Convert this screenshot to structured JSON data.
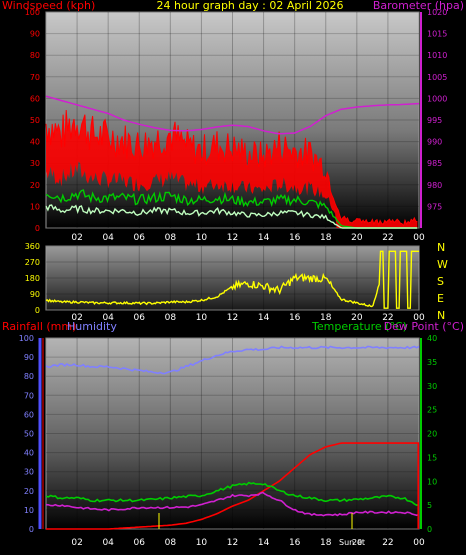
{
  "header": {
    "left": "Windspeed (kph)",
    "center": "24 hour graph day : 02 April 2026",
    "right": "Barometer (hpa)"
  },
  "middle": {
    "compass": [
      "N",
      "W",
      "S",
      "E",
      "N"
    ]
  },
  "bottom_header": {
    "rainfall": "Rainfall (mm)",
    "humidity": "Humidity",
    "temperature": "Temperature (°C)",
    "dewpoint": "Dew Point (°C)"
  },
  "markers": {
    "sunset": "Sunset",
    "sunset_short": "Sun",
    "sunset_tick": "20"
  },
  "colors": {
    "wind_avg": "#ff0000",
    "wind_gust": "#ff0000",
    "barometer": "#d020d0",
    "wind_dir": "#ffff00",
    "rain": "#ff0000",
    "humidity": "#8080ff",
    "temperature": "#00cc00",
    "dewpoint": "#d020d0",
    "green": "#00cc00",
    "lightgreen": "#c0ffc0"
  },
  "chart_data": [
    {
      "type": "line",
      "title": "24 hour graph day : 02 April 2026",
      "ylabel": "Windspeed (kph)",
      "y2label": "Barometer (hpa)",
      "ylim": [
        0,
        100
      ],
      "y2lim": [
        970,
        1020
      ],
      "yticks": [
        0,
        10,
        20,
        30,
        40,
        50,
        60,
        70,
        80,
        90,
        100
      ],
      "y2ticks": [
        975,
        980,
        985,
        990,
        995,
        1000,
        1005,
        1010,
        1015,
        1020
      ],
      "xticks": [
        "02",
        "04",
        "06",
        "08",
        "10",
        "12",
        "14",
        "16",
        "18",
        "20",
        "22",
        "00"
      ],
      "x_hours": [
        0,
        1,
        2,
        3,
        4,
        5,
        6,
        7,
        8,
        9,
        10,
        11,
        12,
        13,
        14,
        15,
        16,
        17,
        18,
        19,
        20,
        21,
        22,
        23,
        24
      ],
      "series": [
        {
          "name": "Windspeed (kph)",
          "axis": "left",
          "style": "gust_band",
          "values": [
            38,
            34,
            40,
            34,
            33,
            32,
            30,
            32,
            34,
            30,
            28,
            30,
            29,
            27,
            26,
            30,
            28,
            27,
            22,
            3,
            2,
            1,
            2,
            1,
            2
          ]
        },
        {
          "name": "",
          "axis": "left",
          "style": "green",
          "values": [
            17,
            14,
            16,
            14,
            14,
            14,
            13,
            14,
            15,
            13,
            13,
            14,
            13,
            12,
            12,
            13,
            13,
            12,
            10,
            1,
            0,
            0,
            0,
            0,
            0
          ]
        },
        {
          "name": "",
          "axis": "left",
          "style": "lightgreen",
          "values": [
            10,
            8,
            9,
            8,
            8,
            8,
            7,
            8,
            8,
            7,
            7,
            8,
            7,
            6,
            6,
            7,
            7,
            6,
            5,
            0,
            0,
            0,
            0,
            0,
            0
          ]
        },
        {
          "name": "Barometer (hpa)",
          "axis": "right",
          "style": "line",
          "values": [
            1000.5,
            999.5,
            998.5,
            997.5,
            996.5,
            995,
            994,
            993.2,
            992.6,
            992.5,
            992.8,
            993.4,
            993.8,
            993.5,
            992.5,
            991.8,
            992,
            993.5,
            996,
            997.5,
            998,
            998.3,
            998.5,
            998.6,
            998.8
          ]
        }
      ]
    },
    {
      "type": "line",
      "title": "",
      "ylabel": "",
      "ylim": [
        0,
        360
      ],
      "yticks": [
        0,
        90,
        180,
        270,
        360
      ],
      "xticks": [
        "02",
        "04",
        "06",
        "08",
        "10",
        "12",
        "14",
        "16",
        "18",
        "20",
        "22",
        "00"
      ],
      "x_hours": [
        0,
        1,
        2,
        3,
        4,
        5,
        6,
        7,
        8,
        9,
        10,
        11,
        12,
        13,
        14,
        15,
        16,
        17,
        18,
        19,
        20,
        21,
        22,
        23,
        24
      ],
      "series": [
        {
          "name": "",
          "values": [
            55,
            45,
            45,
            40,
            40,
            40,
            38,
            38,
            45,
            45,
            55,
            75,
            130,
            150,
            135,
            110,
            180,
            180,
            175,
            60,
            40,
            20,
            300,
            280,
            330
          ]
        }
      ]
    },
    {
      "type": "line",
      "title": "",
      "ylabel": "Rainfall (mm)",
      "y2label": "Temperature (°C)",
      "ylim": [
        0,
        100
      ],
      "y2lim": [
        0,
        40
      ],
      "yticks": [
        0,
        10,
        20,
        30,
        40,
        50,
        60,
        70,
        80,
        90,
        100
      ],
      "y2ticks": [
        0,
        5,
        10,
        15,
        20,
        25,
        30,
        35,
        40
      ],
      "xticks": [
        "02",
        "04",
        "06",
        "08",
        "10",
        "12",
        "14",
        "16",
        "18",
        "20",
        "22",
        "00"
      ],
      "x_hours": [
        0,
        1,
        2,
        3,
        4,
        5,
        6,
        7,
        8,
        9,
        10,
        11,
        12,
        13,
        14,
        15,
        16,
        17,
        18,
        19,
        20,
        21,
        22,
        23,
        24
      ],
      "series": [
        {
          "name": "Rainfall (mm)",
          "axis": "left",
          "values": [
            0,
            0,
            0,
            0,
            0,
            0.5,
            1,
            1.5,
            2,
            3,
            5,
            8,
            12,
            15,
            20,
            25,
            32,
            39,
            43,
            45,
            45,
            45,
            45,
            45,
            45
          ]
        },
        {
          "name": "Humidity",
          "axis": "left",
          "values": [
            85,
            86,
            86,
            85,
            85,
            84,
            83,
            82,
            82,
            85,
            88,
            91,
            93,
            94,
            94,
            95,
            95,
            95,
            95,
            95,
            95,
            95,
            95,
            95,
            95
          ]
        },
        {
          "name": "Temperature (°C)",
          "axis": "right",
          "values": [
            7,
            6.5,
            6.5,
            6,
            6,
            6,
            6,
            6.2,
            6.5,
            6.8,
            7,
            8,
            9,
            9.5,
            9.5,
            8,
            7,
            6.5,
            6,
            6,
            6.2,
            6.5,
            6.8,
            6.5,
            5
          ]
        },
        {
          "name": "Dew Point (°C)",
          "axis": "right",
          "values": [
            5,
            5,
            4.5,
            4.2,
            4,
            4.2,
            4.5,
            4.5,
            4.5,
            4.6,
            5,
            6,
            7,
            7,
            7.5,
            6,
            4,
            3,
            3,
            3,
            3.5,
            3.5,
            3.5,
            3.5,
            3
          ]
        }
      ]
    }
  ]
}
